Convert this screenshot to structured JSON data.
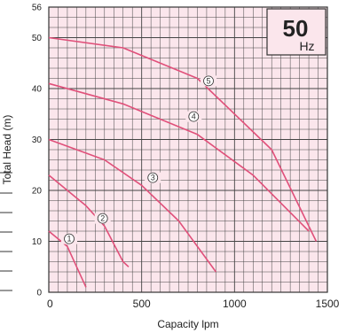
{
  "chart_data": {
    "type": "line",
    "title": "",
    "xlabel": "Capacity lpm",
    "ylabel": "Total Head (m)",
    "xlim": [
      0,
      1500
    ],
    "ylim": [
      0,
      56
    ],
    "x_ticks": [
      "0",
      "500",
      "1000",
      "1500"
    ],
    "y_ticks": [
      "0",
      "10",
      "20",
      "30",
      "40",
      "50",
      "56"
    ],
    "grid": true,
    "frequency_badge": {
      "value": "50",
      "unit": "Hz"
    },
    "colors": {
      "background": "#fbe6ec",
      "grid": "#444444",
      "curve": "#e0507a"
    },
    "series": [
      {
        "name": "1",
        "x": [
          0,
          100,
          150,
          200
        ],
        "y": [
          12,
          9,
          5,
          1
        ]
      },
      {
        "name": "2",
        "x": [
          0,
          200,
          300,
          400,
          430
        ],
        "y": [
          23,
          17,
          13,
          6,
          5
        ]
      },
      {
        "name": "3",
        "x": [
          0,
          300,
          500,
          700,
          900
        ],
        "y": [
          30,
          26,
          21,
          14,
          4
        ]
      },
      {
        "name": "4",
        "x": [
          0,
          400,
          800,
          1100,
          1400
        ],
        "y": [
          41,
          37,
          31,
          23,
          12
        ]
      },
      {
        "name": "5",
        "x": [
          0,
          400,
          800,
          1200,
          1440
        ],
        "y": [
          50,
          48,
          42,
          28,
          10
        ]
      }
    ],
    "curve_labels": [
      {
        "series": "1",
        "x": 110,
        "y": 10.5
      },
      {
        "series": "2",
        "x": 290,
        "y": 14.5
      },
      {
        "series": "3",
        "x": 560,
        "y": 22.5
      },
      {
        "series": "4",
        "x": 780,
        "y": 34.5
      },
      {
        "series": "5",
        "x": 860,
        "y": 41.5
      }
    ]
  }
}
